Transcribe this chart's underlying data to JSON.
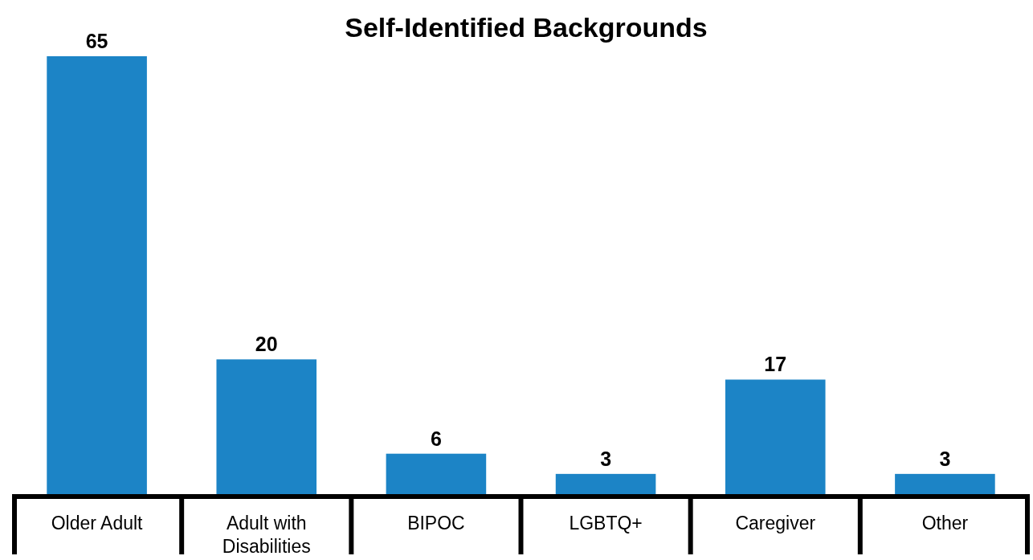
{
  "chart_data": {
    "type": "bar",
    "title": "Self-Identified Backgrounds",
    "categories": [
      "Older Adult",
      "Adult with Disabilities",
      "BIPOC",
      "LGBTQ+",
      "Caregiver",
      "Other"
    ],
    "values": [
      65,
      20,
      6,
      3,
      17,
      3
    ],
    "color": "#1c84c6",
    "data_labels": true
  }
}
